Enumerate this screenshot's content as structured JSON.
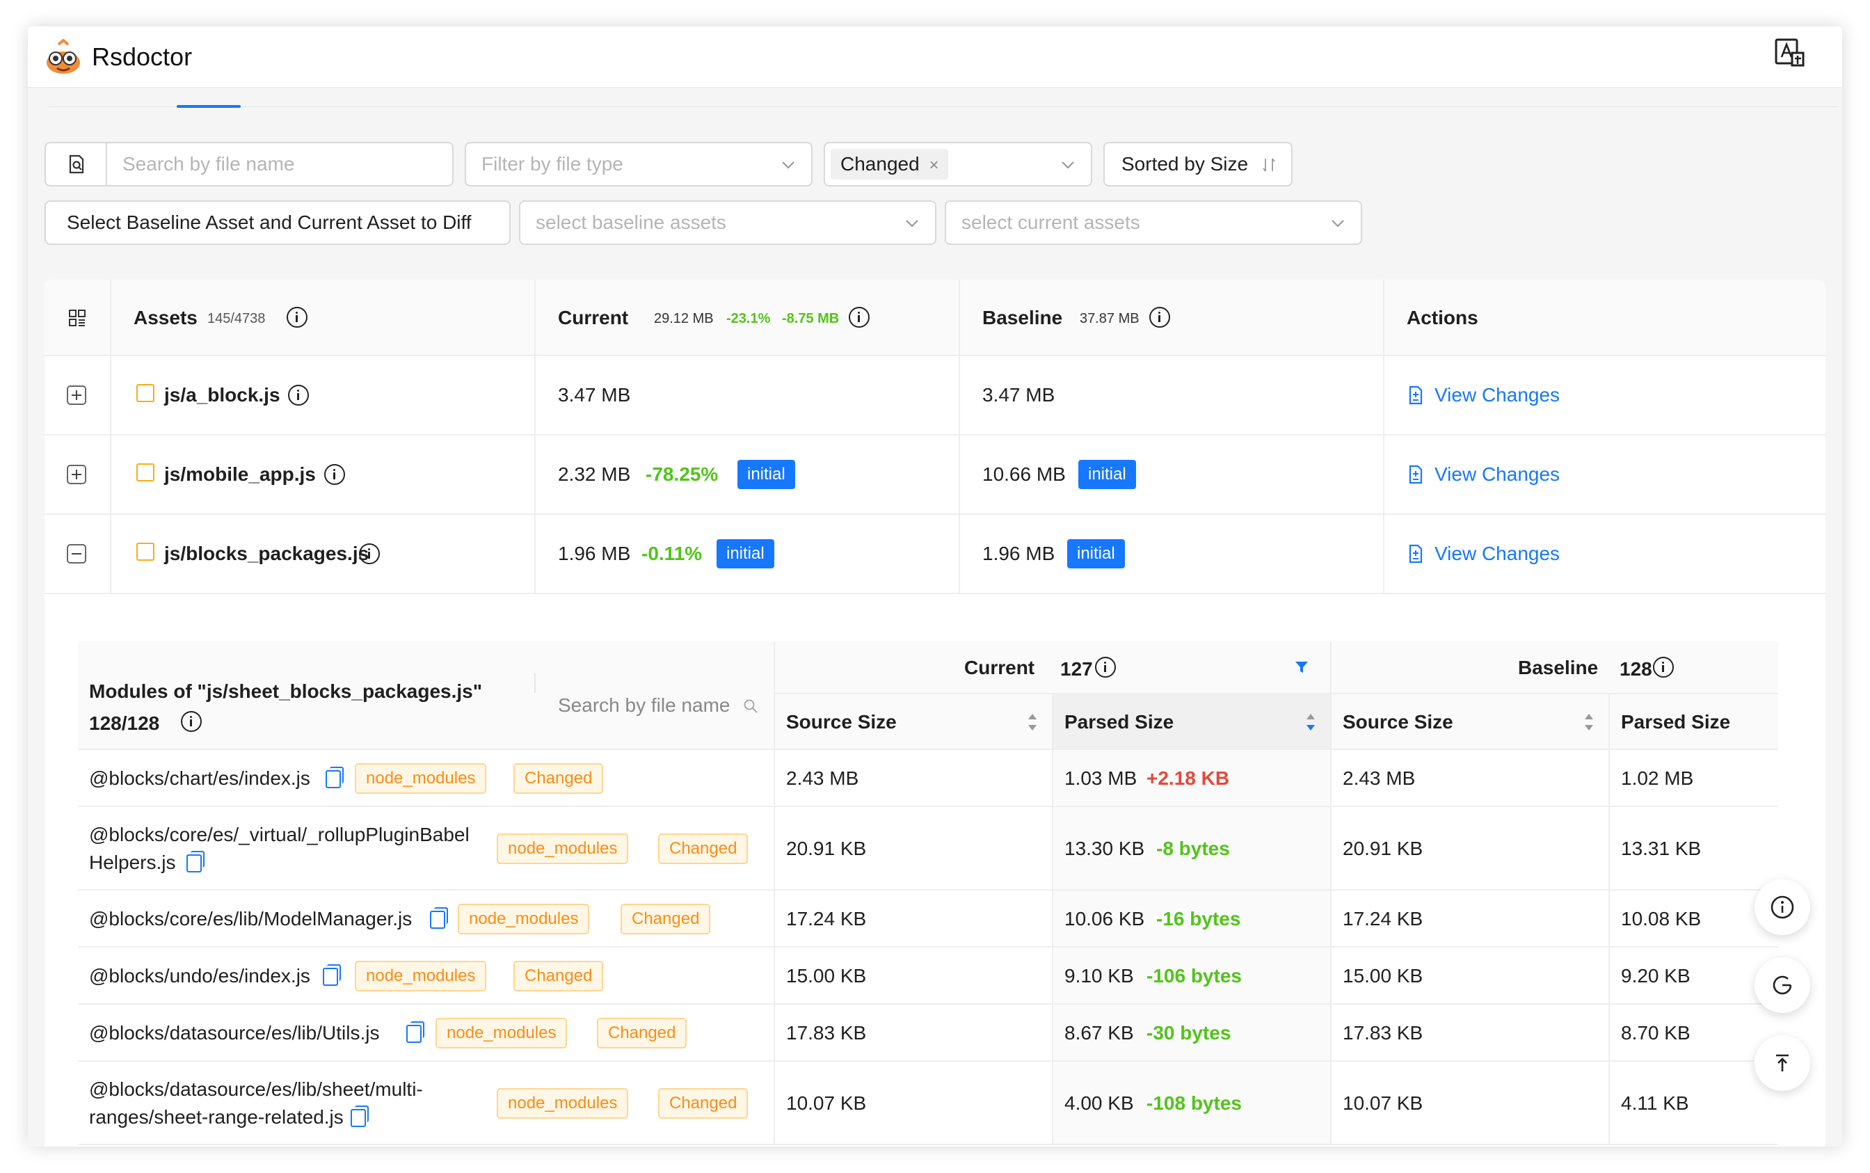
{
  "app": {
    "title": "Rsdoctor"
  },
  "filters": {
    "search_placeholder": "Search by file name",
    "filetype_placeholder": "Filter by file type",
    "changed_tag": "Changed",
    "sort_label": "Sorted by Size",
    "diff_button": "Select Baseline Asset and Current Asset to Diff",
    "baseline_placeholder": "select baseline assets",
    "current_placeholder": "select current assets"
  },
  "assets_table": {
    "headers": {
      "assets": "Assets",
      "assets_count": "145/4738",
      "current": "Current",
      "current_size": "29.12 MB",
      "current_diff_pct": "-23.1%",
      "current_diff_size": "-8.75 MB",
      "baseline": "Baseline",
      "baseline_size": "37.87 MB",
      "actions": "Actions"
    },
    "rows": [
      {
        "name": "js/a_block.js",
        "current": "3.47 MB",
        "diff": "",
        "current_tag": "",
        "baseline": "3.47 MB",
        "baseline_tag": "",
        "action": "View Changes"
      },
      {
        "name": "js/mobile_app.js",
        "current": "2.32 MB",
        "diff": "-78.25%",
        "current_tag": "initial",
        "baseline": "10.66 MB",
        "baseline_tag": "initial",
        "action": "View Changes"
      },
      {
        "name": "js/blocks_packages.js",
        "current": "1.96 MB",
        "diff": "-0.11%",
        "current_tag": "initial",
        "baseline": "1.96 MB",
        "baseline_tag": "initial",
        "action": "View Changes"
      }
    ]
  },
  "modules_table": {
    "title": "Modules of \"js/sheet_blocks_packages.js\"",
    "count": "128/128",
    "search_placeholder": "Search by file name",
    "current": "Current",
    "current_count": "127",
    "baseline": "Baseline",
    "baseline_count": "128",
    "source_size": "Source Size",
    "parsed_size": "Parsed Size",
    "tag_node_modules": "node_modules",
    "tag_changed": "Changed",
    "rows": [
      {
        "path1": "@blocks/chart/es/index.js",
        "path2": "",
        "cur_source": "2.43 MB",
        "cur_parsed": "1.03 MB",
        "delta": "+2.18 KB",
        "base_source": "2.43 MB",
        "base_parsed": "1.02 MB"
      },
      {
        "path1": "@blocks/core/es/_virtual/_rollupPluginBabel",
        "path2": "Helpers.js",
        "cur_source": "20.91 KB",
        "cur_parsed": "13.30 KB",
        "delta": "-8 bytes",
        "base_source": "20.91 KB",
        "base_parsed": "13.31 KB"
      },
      {
        "path1": "@blocks/core/es/lib/ModelManager.js",
        "path2": "",
        "cur_source": "17.24 KB",
        "cur_parsed": "10.06 KB",
        "delta": "-16 bytes",
        "base_source": "17.24 KB",
        "base_parsed": "10.08 KB"
      },
      {
        "path1": "@blocks/undo/es/index.js",
        "path2": "",
        "cur_source": "15.00 KB",
        "cur_parsed": "9.10 KB",
        "delta": "-106 bytes",
        "base_source": "15.00 KB",
        "base_parsed": "9.20 KB"
      },
      {
        "path1": "@blocks/datasource/es/lib/Utils.js",
        "path2": "",
        "cur_source": "17.83 KB",
        "cur_parsed": "8.67 KB",
        "delta": "-30 bytes",
        "base_source": "17.83 KB",
        "base_parsed": "8.70 KB"
      },
      {
        "path1": "@blocks/datasource/es/lib/sheet/multi-",
        "path2": "ranges/sheet-range-related.js",
        "cur_source": "10.07 KB",
        "cur_parsed": "4.00 KB",
        "delta": "-108 bytes",
        "base_source": "10.07 KB",
        "base_parsed": "4.11 KB"
      }
    ]
  },
  "colors": {
    "accent": "#1677ff",
    "decrease": "#52c41a",
    "increase": "#e5483b",
    "tag_border": "#ffd591",
    "tag_text": "#fa8c16"
  },
  "icons": {
    "fab": [
      "info-icon",
      "refresh-icon",
      "back-to-top-icon"
    ]
  }
}
